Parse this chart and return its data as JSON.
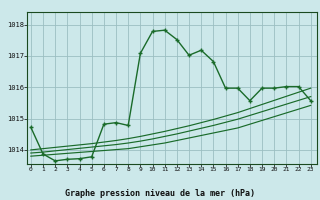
{
  "title": "Graphe pression niveau de la mer (hPa)",
  "bg_color": "#cce8ea",
  "grid_color": "#9bbfc2",
  "line_color": "#1a6b2a",
  "x_ticks": [
    0,
    1,
    2,
    3,
    4,
    5,
    6,
    7,
    8,
    9,
    10,
    11,
    12,
    13,
    14,
    15,
    16,
    17,
    18,
    19,
    20,
    21,
    22,
    23
  ],
  "y_ticks": [
    1014,
    1015,
    1016,
    1017,
    1018
  ],
  "ylim": [
    1013.55,
    1018.4
  ],
  "xlim": [
    -0.3,
    23.5
  ],
  "main_series": [
    1014.72,
    1013.87,
    1013.65,
    1013.7,
    1013.72,
    1013.78,
    1014.82,
    1014.87,
    1014.78,
    1017.08,
    1017.78,
    1017.82,
    1017.52,
    1017.02,
    1017.18,
    1016.82,
    1015.97,
    1015.97,
    1015.57,
    1015.97,
    1015.97,
    1016.02,
    1016.02,
    1015.57
  ],
  "linear_series_1": [
    1013.8,
    1013.83,
    1013.86,
    1013.89,
    1013.92,
    1013.95,
    1013.98,
    1014.01,
    1014.04,
    1014.1,
    1014.16,
    1014.22,
    1014.3,
    1014.38,
    1014.46,
    1014.54,
    1014.62,
    1014.7,
    1014.82,
    1014.94,
    1015.06,
    1015.18,
    1015.3,
    1015.42
  ],
  "linear_series_2": [
    1013.9,
    1013.93,
    1013.97,
    1014.01,
    1014.05,
    1014.09,
    1014.13,
    1014.17,
    1014.22,
    1014.28,
    1014.35,
    1014.43,
    1014.51,
    1014.6,
    1014.69,
    1014.78,
    1014.88,
    1014.98,
    1015.1,
    1015.22,
    1015.34,
    1015.46,
    1015.58,
    1015.7
  ],
  "linear_series_3": [
    1014.0,
    1014.04,
    1014.08,
    1014.12,
    1014.16,
    1014.2,
    1014.25,
    1014.3,
    1014.36,
    1014.43,
    1014.51,
    1014.59,
    1014.68,
    1014.77,
    1014.87,
    1014.97,
    1015.08,
    1015.19,
    1015.32,
    1015.45,
    1015.58,
    1015.71,
    1015.84,
    1015.97
  ]
}
